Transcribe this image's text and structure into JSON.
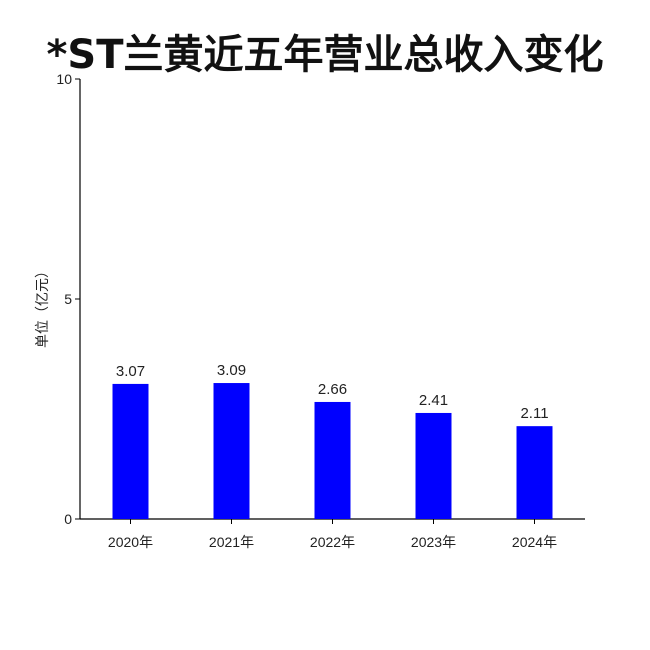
{
  "chart_data": {
    "type": "bar",
    "title": "*ST兰黄近五年营业总收入变化",
    "xlabel": "",
    "ylabel": "单位（亿元）",
    "categories": [
      "2020年",
      "2021年",
      "2022年",
      "2023年",
      "2024年"
    ],
    "values": [
      3.07,
      3.09,
      2.66,
      2.41,
      2.11
    ],
    "data_labels": [
      "3.07",
      "3.09",
      "2.66",
      "2.41",
      "2.11"
    ],
    "ylim": [
      0,
      10
    ],
    "yticks": [
      0,
      5,
      10
    ],
    "ytick_labels": [
      "0",
      "5",
      "10"
    ],
    "bar_color": "#0000ff",
    "grid": false,
    "legend": "none"
  }
}
